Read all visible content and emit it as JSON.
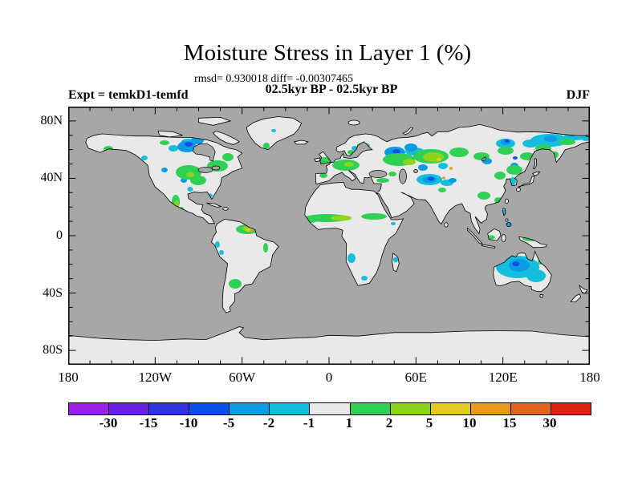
{
  "figure": {
    "title": "Moisture Stress in Layer 1 (%)",
    "stats_line": "rmsd= 0.930018 diff= -0.00307465",
    "period_line": "02.5kyr BP - 02.5kyr BP",
    "experiment_label": "Expt = temkD1-temfd",
    "season_label": "DJF"
  },
  "axes": {
    "lat_ticks": [
      {
        "deg": 80,
        "label": "80N"
      },
      {
        "deg": 40,
        "label": "40N"
      },
      {
        "deg": 0,
        "label": "0"
      },
      {
        "deg": -40,
        "label": "40S"
      },
      {
        "deg": -80,
        "label": "80S"
      }
    ],
    "lon_ticks": [
      {
        "deg": -180,
        "label": "180"
      },
      {
        "deg": -120,
        "label": "120W"
      },
      {
        "deg": -60,
        "label": "60W"
      },
      {
        "deg": 0,
        "label": "0"
      },
      {
        "deg": 60,
        "label": "60E"
      },
      {
        "deg": 120,
        "label": "120E"
      },
      {
        "deg": 180,
        "label": "180"
      }
    ],
    "lat_minor_step_deg": 10,
    "lat_major_step_deg": 40,
    "lon_minor_step_deg": 15,
    "lon_major_step_deg": 60
  },
  "colorbar": {
    "labels": [
      "-30",
      "-15",
      "-10",
      "-5",
      "-2",
      "-1",
      "1",
      "2",
      "5",
      "10",
      "15",
      "30"
    ],
    "colors": [
      "#9A22E6",
      "#6A22E2",
      "#3333DB",
      "#0D50E8",
      "#0A9BE2",
      "#15BEDC",
      "#E9E9E9",
      "#2FD054",
      "#8CD41E",
      "#E2CB26",
      "#E89A1C",
      "#E0661E",
      "#DD2010"
    ]
  },
  "map_colors": {
    "ocean": "#A7A7A7",
    "land_neutral": "#E9E9E9",
    "coastline": "#000000"
  },
  "chart_data": {
    "type": "heatmap",
    "subtype": "filled_contour_world_map",
    "projection": "equirectangular",
    "title": "Moisture Stress in Layer 1 (%)",
    "variable": "Moisture Stress in Layer 1",
    "units": "%",
    "season": "DJF",
    "experiment": "temkD1-temfd",
    "comparison": "02.5kyr BP - 02.5kyr BP",
    "rmsd": 0.930018,
    "diff": -0.00307465,
    "lon_range": [
      -180,
      180
    ],
    "lat_range": [
      -90,
      90
    ],
    "lon_tick_labels": [
      "180",
      "120W",
      "60W",
      "0",
      "60E",
      "120E",
      "180"
    ],
    "lat_tick_labels": [
      "80N",
      "40N",
      "0",
      "40S",
      "80S"
    ],
    "contour_levels": [
      -30,
      -15,
      -10,
      -5,
      -2,
      -1,
      1,
      2,
      5,
      10,
      15,
      30
    ],
    "palette": [
      "#9A22E6",
      "#6A22E2",
      "#3333DB",
      "#0D50E8",
      "#0A9BE2",
      "#15BEDC",
      "#E9E9E9",
      "#2FD054",
      "#8CD41E",
      "#E2CB26",
      "#E89A1C",
      "#E0661E",
      "#DD2010"
    ],
    "ocean_masked_color": "#A7A7A7",
    "anomaly_regions": [
      {
        "region": "central North America / Great Lakes",
        "value_range": "1 to 5"
      },
      {
        "region": "northern Canada around Hudson Bay",
        "value_range": "-5 to -1"
      },
      {
        "region": "western Mexico",
        "value_range": "1 to 5"
      },
      {
        "region": "UK and central Europe",
        "value_range": "1 to 5"
      },
      {
        "region": "western Russia",
        "value_range": "-10 to -2"
      },
      {
        "region": "central Eurasia steppe belt",
        "value_range": "1 to 5"
      },
      {
        "region": "small spots near Altai / central Asia",
        "value_range": "10 to 15"
      },
      {
        "region": "central Asia / Tibet margin",
        "value_range": "-10 to -1"
      },
      {
        "region": "eastern Siberia",
        "value_range": "-5 to -1"
      },
      {
        "region": "Manchuria and southern China",
        "value_range": "1 to 5"
      },
      {
        "region": "Sahel band across Africa",
        "value_range": "1 to 5"
      },
      {
        "region": "southwestern Africa and Madagascar",
        "value_range": "-2 to -1"
      },
      {
        "region": "northern South America (Guianas)",
        "value_range": "2 to 10"
      },
      {
        "region": "central Argentina",
        "value_range": "1 to 2"
      },
      {
        "region": "Australian interior",
        "value_range": "-10 to -1"
      }
    ],
    "grid": false,
    "legend_position": "bottom horizontal colorbar"
  }
}
